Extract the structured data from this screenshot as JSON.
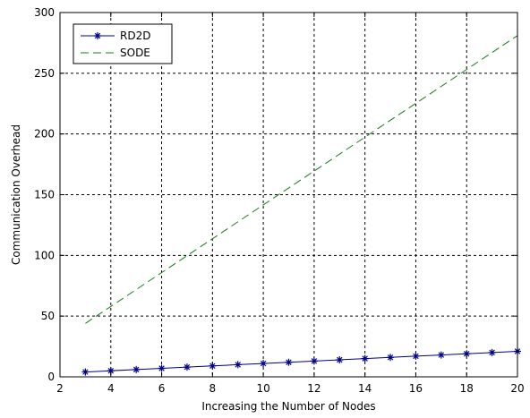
{
  "chart_data": {
    "type": "line",
    "title": "",
    "xlabel": "Increasing the Number of Nodes",
    "ylabel": "Communication Overhead",
    "xlim": [
      2,
      20
    ],
    "ylim": [
      0,
      300
    ],
    "xticks": [
      2,
      4,
      6,
      8,
      10,
      12,
      14,
      16,
      18,
      20
    ],
    "yticks": [
      0,
      50,
      100,
      150,
      200,
      250,
      300
    ],
    "grid": true,
    "legend_position": "top-left",
    "series": [
      {
        "name": "RD2D",
        "color": "#00008b",
        "style": "solid-star",
        "x": [
          3,
          4,
          5,
          6,
          7,
          8,
          9,
          10,
          11,
          12,
          13,
          14,
          15,
          16,
          17,
          18,
          19,
          20
        ],
        "values": [
          4,
          5,
          6,
          7,
          8,
          9,
          10,
          11,
          12,
          13,
          14,
          15,
          16,
          17,
          18,
          19,
          20,
          21
        ]
      },
      {
        "name": "SODE",
        "color": "#1a7a1a",
        "style": "dashed",
        "x": [
          3,
          20
        ],
        "values": [
          44,
          281
        ]
      }
    ]
  }
}
